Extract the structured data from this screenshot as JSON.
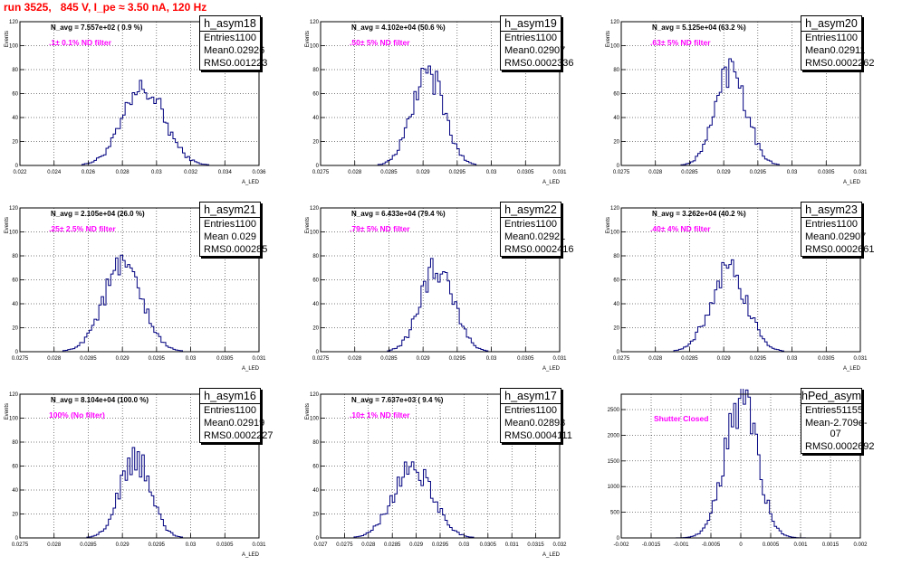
{
  "page_title": "run 3525,   845 V, I_pe ≈ 3.50 nA, 120 Hz",
  "chart_data": [
    {
      "type": "bar",
      "name": "h_asym18",
      "entries": "1100",
      "mean": "0.02926",
      "rms": "0.001223",
      "navg": "N_avg = 7.557e+02 ( 0.9 %)",
      "filter": ".1± 0.1% ND filter",
      "ylabel": "Events",
      "xlabel": "A_LED",
      "xlim": [
        0.022,
        0.036
      ],
      "ylim": [
        0,
        120
      ],
      "xticks": [
        0.022,
        0.024,
        0.026,
        0.028,
        0.03,
        0.032,
        0.034,
        0.036
      ],
      "xticklabels": [
        "0.022",
        "0.024",
        "0.026",
        "0.028",
        "0.03",
        "0.032",
        "0.034",
        "0.036"
      ],
      "yticks": [
        0,
        20,
        40,
        60,
        80,
        100,
        120
      ],
      "mean_val": 0.02926,
      "rms_val": 0.001223,
      "peak": 63,
      "bins": 100
    },
    {
      "type": "bar",
      "name": "h_asym19",
      "entries": "1100",
      "mean": "0.02907",
      "rms": "0.0002336",
      "navg": "N_avg = 4.102e+04 (50.6 %)",
      "filter": ".50± 5% ND filter",
      "ylabel": "Events",
      "xlabel": "A_LED",
      "xlim": [
        0.0275,
        0.031
      ],
      "ylim": [
        0,
        120
      ],
      "xticks": [
        0.0275,
        0.028,
        0.0285,
        0.029,
        0.0295,
        0.03,
        0.0305,
        0.031
      ],
      "xticklabels": [
        "0.0275",
        "0.028",
        "0.0285",
        "0.029",
        "0.0295",
        "0.03",
        "0.0305",
        "0.031"
      ],
      "yticks": [
        0,
        20,
        40,
        60,
        80,
        100,
        120
      ],
      "mean_val": 0.02907,
      "rms_val": 0.0002336,
      "peak": 77,
      "bins": 100
    },
    {
      "type": "bar",
      "name": "h_asym20",
      "entries": "1100",
      "mean": "0.02911",
      "rms": "0.0002262",
      "navg": "N_avg = 5.125e+04 (63.2 %)",
      "filter": ".63± 5% ND filter",
      "ylabel": "Events",
      "xlabel": "A_LED",
      "xlim": [
        0.0275,
        0.031
      ],
      "ylim": [
        0,
        120
      ],
      "xticks": [
        0.0275,
        0.028,
        0.0285,
        0.029,
        0.0295,
        0.03,
        0.0305,
        0.031
      ],
      "xticklabels": [
        "0.0275",
        "0.028",
        "0.0285",
        "0.029",
        "0.0295",
        "0.03",
        "0.0305",
        "0.031"
      ],
      "yticks": [
        0,
        20,
        40,
        60,
        80,
        100,
        120
      ],
      "mean_val": 0.02911,
      "rms_val": 0.0002262,
      "peak": 82,
      "bins": 100
    },
    {
      "type": "bar",
      "name": "h_asym21",
      "entries": "1100",
      "mean": "0.029",
      "rms": "0.000285",
      "navg": "N_avg = 2.105e+04 (26.0 %)",
      "filter": ".25± 2.5% ND filter",
      "ylabel": "Events",
      "xlabel": "A_LED",
      "xlim": [
        0.0275,
        0.031
      ],
      "ylim": [
        0,
        120
      ],
      "xticks": [
        0.0275,
        0.028,
        0.0285,
        0.029,
        0.0295,
        0.03,
        0.0305,
        0.031
      ],
      "xticklabels": [
        "0.0275",
        "0.028",
        "0.0285",
        "0.029",
        "0.0295",
        "0.03",
        "0.0305",
        "0.031"
      ],
      "yticks": [
        0,
        20,
        40,
        60,
        80,
        100,
        120
      ],
      "mean_val": 0.029,
      "rms_val": 0.000285,
      "peak": 70,
      "bins": 100
    },
    {
      "type": "bar",
      "name": "h_asym22",
      "entries": "1100",
      "mean": "0.02921",
      "rms": "0.0002416",
      "navg": "N_avg = 6.433e+04 (79.4 %)",
      "filter": ".79± 5% ND filter",
      "ylabel": "Events",
      "xlabel": "A_LED",
      "xlim": [
        0.0275,
        0.031
      ],
      "ylim": [
        0,
        120
      ],
      "xticks": [
        0.0275,
        0.028,
        0.0285,
        0.029,
        0.0295,
        0.03,
        0.0305,
        0.031
      ],
      "xticklabels": [
        "0.0275",
        "0.028",
        "0.0285",
        "0.029",
        "0.0295",
        "0.03",
        "0.0305",
        "0.031"
      ],
      "yticks": [
        0,
        20,
        40,
        60,
        80,
        100,
        120
      ],
      "mean_val": 0.02921,
      "rms_val": 0.0002416,
      "peak": 72,
      "bins": 100
    },
    {
      "type": "bar",
      "name": "h_asym23",
      "entries": "1100",
      "mean": "0.02907",
      "rms": "0.0002661",
      "navg": "N_avg = 3.262e+04 (40.2 %)",
      "filter": ".40± 4% ND filter",
      "ylabel": "Events",
      "xlabel": "A_LED",
      "xlim": [
        0.0275,
        0.031
      ],
      "ylim": [
        0,
        120
      ],
      "xticks": [
        0.0275,
        0.028,
        0.0285,
        0.029,
        0.0295,
        0.03,
        0.0305,
        0.031
      ],
      "xticklabels": [
        "0.0275",
        "0.028",
        "0.0285",
        "0.029",
        "0.0295",
        "0.03",
        "0.0305",
        "0.031"
      ],
      "yticks": [
        0,
        20,
        40,
        60,
        80,
        100,
        120
      ],
      "mean_val": 0.02907,
      "rms_val": 0.0002661,
      "peak": 66,
      "bins": 100
    },
    {
      "type": "bar",
      "name": "h_asym16",
      "entries": "1100",
      "mean": "0.02919",
      "rms": "0.0002227",
      "navg": "N_avg = 8.104e+04 (100.0 %)",
      "filter": "100% (No filter)",
      "ylabel": "Events",
      "xlabel": "A_LED",
      "xlim": [
        0.0275,
        0.031
      ],
      "ylim": [
        0,
        120
      ],
      "xticks": [
        0.0275,
        0.028,
        0.0285,
        0.029,
        0.0295,
        0.03,
        0.0305,
        0.031
      ],
      "xticklabels": [
        "0.0275",
        "0.028",
        "0.0285",
        "0.029",
        "0.0295",
        "0.03",
        "0.0305",
        "0.031"
      ],
      "yticks": [
        0,
        20,
        40,
        60,
        80,
        100,
        120
      ],
      "mean_val": 0.02919,
      "rms_val": 0.0002227,
      "peak": 66,
      "bins": 100
    },
    {
      "type": "bar",
      "name": "h_asym17",
      "entries": "1100",
      "mean": "0.02893",
      "rms": "0.0004111",
      "navg": "N_avg = 7.637e+03 ( 9.4 %)",
      "filter": ".10± 1% ND filter",
      "ylabel": "Events",
      "xlabel": "A_LED",
      "xlim": [
        0.027,
        0.032
      ],
      "ylim": [
        0,
        120
      ],
      "xticks": [
        0.027,
        0.0275,
        0.028,
        0.0285,
        0.029,
        0.0295,
        0.03,
        0.0305,
        0.031,
        0.0315,
        0.032
      ],
      "xticklabels": [
        "0.027",
        "0.0275",
        "0.028",
        "0.0285",
        "0.029",
        "0.0295",
        "0.03",
        "0.0305",
        "0.031",
        "0.0315",
        "0.032"
      ],
      "yticks": [
        0,
        20,
        40,
        60,
        80,
        100,
        120
      ],
      "mean_val": 0.02893,
      "rms_val": 0.0004111,
      "peak": 60,
      "bins": 100
    },
    {
      "type": "bar",
      "name": "hPed_asym",
      "entries": "51155",
      "mean": "-2.709e-07",
      "rms": "0.0002692",
      "navg": "",
      "filter": "Shutter Closed",
      "ylabel": "",
      "xlabel": "",
      "xlim": [
        -0.002,
        0.002
      ],
      "ylim": [
        0,
        2800
      ],
      "xticks": [
        -0.002,
        -0.0015,
        -0.001,
        -0.0005,
        0,
        0.0005,
        0.001,
        0.0015,
        0.002
      ],
      "xticklabels": [
        "-0.002",
        "-0.0015",
        "-0.001",
        "-0.0005",
        "0",
        "0.0005",
        "0.001",
        "0.0015",
        "0.002"
      ],
      "yticks": [
        0,
        500,
        1000,
        1500,
        2000,
        2500
      ],
      "mean_val": 0.0,
      "rms_val": 0.0002692,
      "peak": 2700,
      "bins": 100
    }
  ],
  "stats_labels": {
    "entries": "Entries",
    "mean": "Mean",
    "rms": "RMS"
  }
}
